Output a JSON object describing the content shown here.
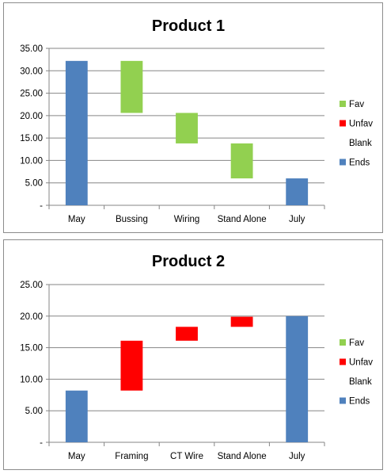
{
  "colors": {
    "fav": "#92d050",
    "unfav": "#ff0000",
    "ends": "#4f81bd",
    "grid": "#868686",
    "axis": "#868686"
  },
  "legend": [
    {
      "key": "fav",
      "label": "Fav",
      "color": "#92d050"
    },
    {
      "key": "unfav",
      "label": "Unfav",
      "color": "#ff0000"
    },
    {
      "key": "blank",
      "label": "Blank",
      "color": null
    },
    {
      "key": "ends",
      "label": "Ends",
      "color": "#4f81bd"
    }
  ],
  "chart_data": [
    {
      "type": "bar",
      "subtype": "waterfall",
      "title": "Product 1",
      "categories": [
        "May",
        "Bussing",
        "Wiring",
        "Stand Alone",
        "July"
      ],
      "ylim": [
        0,
        35
      ],
      "yticks": [
        "-",
        "5.00",
        "10.00",
        "15.00",
        "20.00",
        "25.00",
        "30.00",
        "35.00"
      ],
      "grid": true,
      "legend_position": "right",
      "series": [
        {
          "name": "Fav",
          "color": "#92d050",
          "values": [
            null,
            11.6,
            6.8,
            7.8,
            null
          ],
          "bases": [
            null,
            20.6,
            13.8,
            6.0,
            null
          ]
        },
        {
          "name": "Unfav",
          "color": "#ff0000",
          "values": [
            null,
            null,
            null,
            null,
            null
          ],
          "bases": [
            null,
            null,
            null,
            null,
            null
          ]
        },
        {
          "name": "Blank",
          "color": null,
          "values": [
            0,
            20.6,
            13.8,
            6.0,
            0
          ]
        },
        {
          "name": "Ends",
          "color": "#4f81bd",
          "values": [
            32.2,
            null,
            null,
            null,
            6.0
          ],
          "bases": [
            0,
            null,
            null,
            null,
            0
          ]
        }
      ]
    },
    {
      "type": "bar",
      "subtype": "waterfall",
      "title": "Product 2",
      "categories": [
        "May",
        "Framing",
        "CT Wire",
        "Stand Alone",
        "July"
      ],
      "ylim": [
        0,
        25
      ],
      "yticks": [
        "-",
        "5.00",
        "10.00",
        "15.00",
        "20.00",
        "25.00"
      ],
      "grid": true,
      "legend_position": "right",
      "series": [
        {
          "name": "Fav",
          "color": "#92d050",
          "values": [
            null,
            null,
            null,
            null,
            null
          ],
          "bases": [
            null,
            null,
            null,
            null,
            null
          ]
        },
        {
          "name": "Unfav",
          "color": "#ff0000",
          "values": [
            null,
            7.9,
            2.2,
            1.6,
            null
          ],
          "bases": [
            null,
            8.2,
            16.1,
            18.3,
            null
          ]
        },
        {
          "name": "Blank",
          "color": null,
          "values": [
            0,
            8.2,
            16.1,
            18.3,
            0
          ]
        },
        {
          "name": "Ends",
          "color": "#4f81bd",
          "values": [
            8.2,
            null,
            null,
            null,
            20.0
          ],
          "bases": [
            0,
            null,
            null,
            null,
            0
          ]
        }
      ]
    }
  ]
}
